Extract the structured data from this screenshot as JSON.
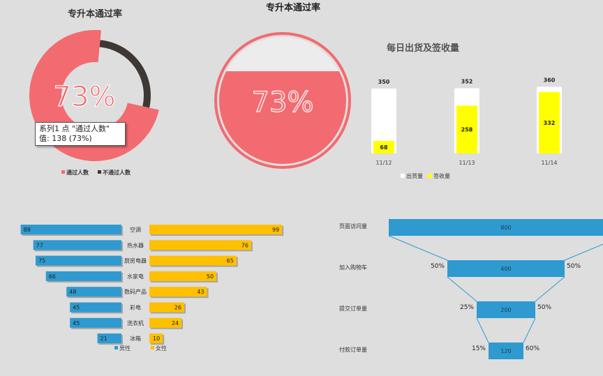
{
  "colors": {
    "pass": "#f26b70",
    "fail": "#3e3733",
    "male": "#2e9ad0",
    "female": "#ffc000",
    "receipt": "#ffff00",
    "shipment": "#ffffff",
    "funnel": "#2e9ad0",
    "background": "#dedede"
  },
  "tooltip": {
    "line1": "系列1 点 \"通过人数\"",
    "line2": "值: 138 (73%)"
  },
  "chart_data": [
    {
      "type": "pie",
      "title": "专升本通过率",
      "center_label": "73%",
      "slices": [
        {
          "label": "通过人数",
          "value": 138,
          "percent": 73
        },
        {
          "label": "不通过人数",
          "value": 51,
          "percent": 27
        }
      ],
      "legend_position": "bottom"
    },
    {
      "type": "gauge",
      "title": "专升本通过率",
      "center_label": "73%",
      "value": 0.73
    },
    {
      "type": "bar",
      "title": "每日出货及签收量",
      "categories": [
        "11/12",
        "11/13",
        "11/14"
      ],
      "series": [
        {
          "name": "出货量",
          "values": [
            350,
            352,
            360
          ]
        },
        {
          "name": "签收量",
          "values": [
            68,
            258,
            332
          ]
        }
      ],
      "ylim": [
        0,
        380
      ],
      "legend_position": "bottom"
    },
    {
      "type": "bar",
      "title": "",
      "orientation": "butterfly",
      "categories": [
        "空调",
        "热水器",
        "厨房电器",
        "水家电",
        "数码产品",
        "彩电",
        "洗衣机",
        "冰箱"
      ],
      "series": [
        {
          "name": "男性",
          "values": [
            88,
            77,
            75,
            66,
            48,
            45,
            45,
            21
          ]
        },
        {
          "name": "女性",
          "values": [
            99,
            76,
            65,
            50,
            43,
            26,
            24,
            10
          ]
        }
      ],
      "xlim": [
        0,
        100
      ],
      "legend_position": "bottom"
    },
    {
      "type": "funnel",
      "title": "",
      "stages": [
        {
          "label": "页面访问量",
          "value": 800,
          "left_pct": "",
          "right_pct": ""
        },
        {
          "label": "加入购物车",
          "value": 400,
          "left_pct": "50%",
          "right_pct": "50%"
        },
        {
          "label": "提交订单量",
          "value": 200,
          "left_pct": "25%",
          "right_pct": "50%"
        },
        {
          "label": "付款订单量",
          "value": 120,
          "left_pct": "15%",
          "right_pct": "60%"
        }
      ]
    }
  ]
}
